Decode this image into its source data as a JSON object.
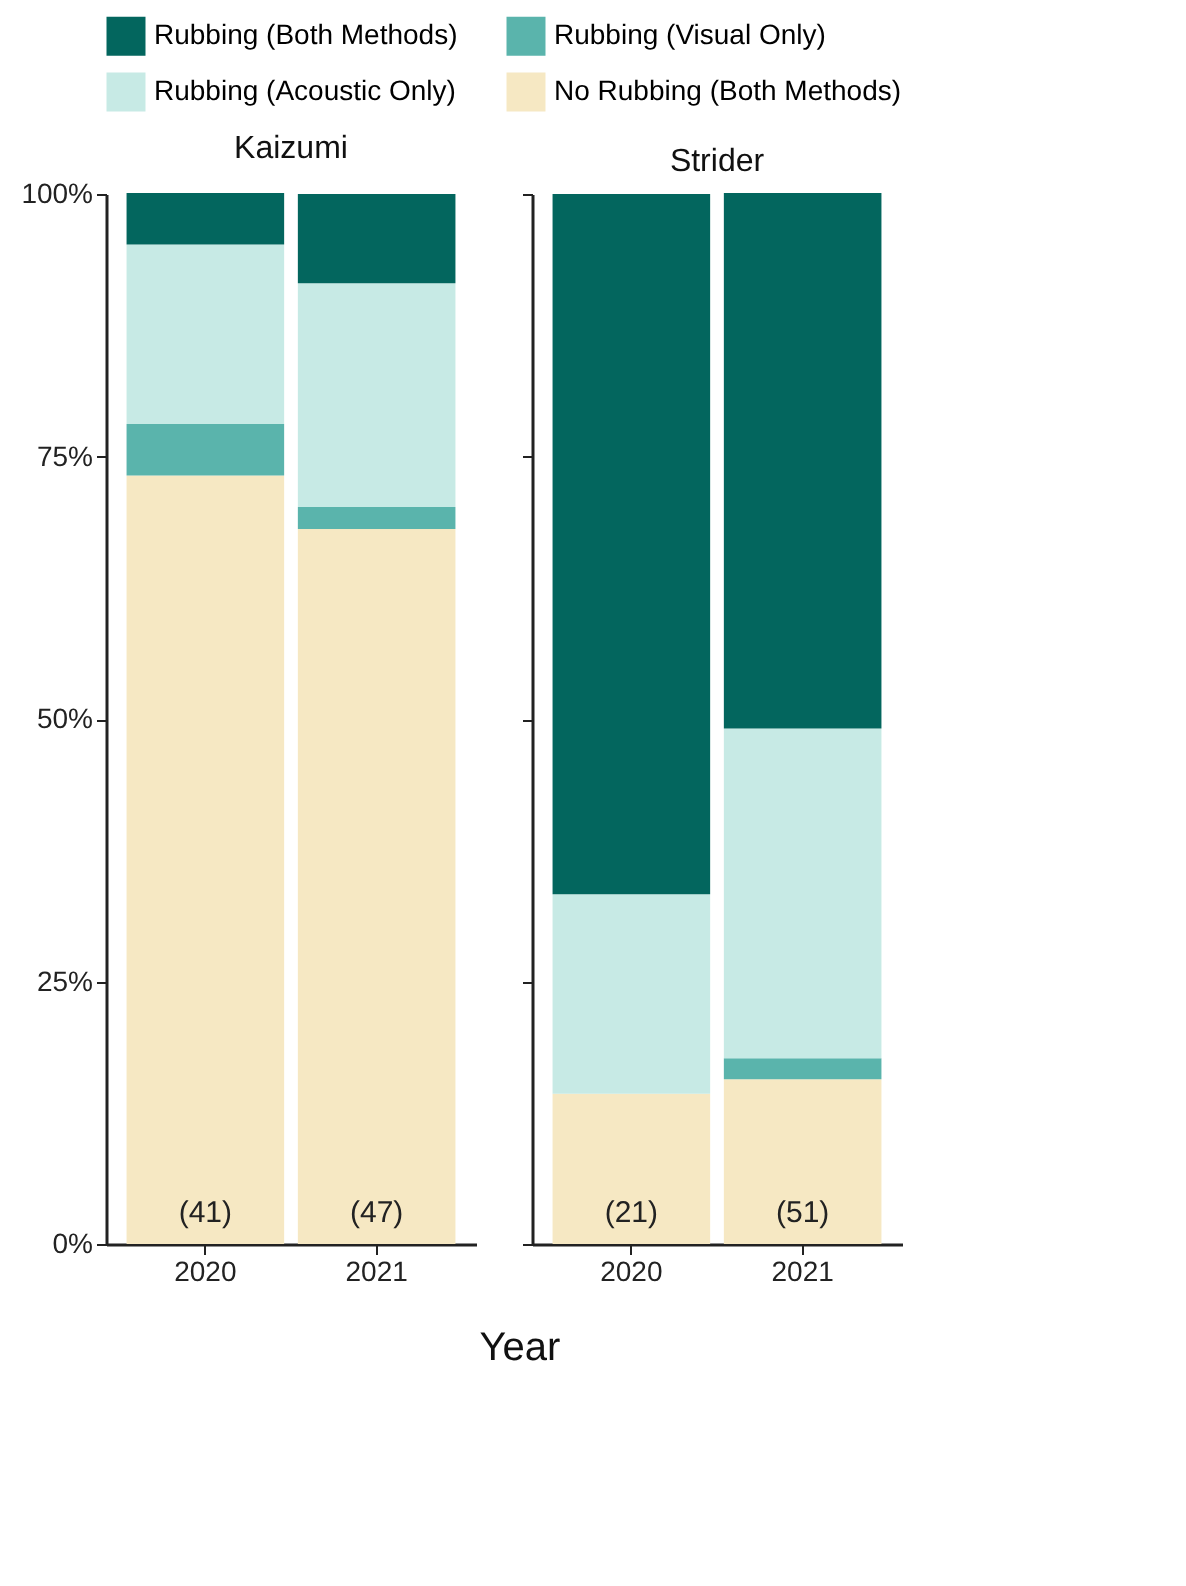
{
  "chart_data": [
    {
      "type": "bar",
      "title": "Kaizumi",
      "stacked": true,
      "categories": [
        "2020",
        "2021"
      ],
      "ylim": [
        0,
        100
      ],
      "yticks": [
        {
          "value": 0,
          "label": "0%"
        },
        {
          "value": 25,
          "label": "25%"
        },
        {
          "value": 50,
          "label": "50%"
        },
        {
          "value": 75,
          "label": "75%"
        },
        {
          "value": 100,
          "label": "100%"
        }
      ],
      "legend": "top",
      "xlabel": "Year",
      "series": [
        {
          "name": "No Rubbing (Both Methods)",
          "color": "#f6e8c3",
          "values": [
            73.2,
            68.1
          ]
        },
        {
          "name": "Rubbing (Visual Only)",
          "color": "#5ab4ac",
          "values": [
            4.9,
            2.1
          ]
        },
        {
          "name": "Rubbing (Acoustic Only)",
          "color": "#c7eae5",
          "values": [
            17.1,
            21.3
          ]
        },
        {
          "name": "Rubbing (Both Methods)",
          "color": "#03665e",
          "values": [
            4.9,
            8.5
          ]
        }
      ],
      "annotations": [
        "(41)",
        "(47)"
      ]
    },
    {
      "type": "bar",
      "title": "Strider",
      "stacked": true,
      "categories": [
        "2020",
        "2021"
      ],
      "ylim": [
        0,
        100
      ],
      "yticks": [
        {
          "value": 0,
          "label": null
        },
        {
          "value": 25,
          "label": null
        },
        {
          "value": 50,
          "label": null
        },
        {
          "value": 75,
          "label": null
        },
        {
          "value": 100,
          "label": null
        }
      ],
      "tick_labels": "x",
      "legend": "top",
      "series": [
        {
          "name": "No Rubbing (Both Methods)",
          "color": "#f6e8c3",
          "values": [
            14.3,
            15.7
          ]
        },
        {
          "name": "Rubbing (Visual Only)",
          "color": "#5ab4ac",
          "values": [
            0,
            2.0
          ]
        },
        {
          "name": "Rubbing (Acoustic Only)",
          "color": "#c7eae5",
          "values": [
            19.0,
            31.4
          ]
        },
        {
          "name": "Rubbing (Both Methods)",
          "color": "#03665e",
          "values": [
            66.7,
            51.0
          ]
        }
      ],
      "annotations": [
        "(21)",
        "(51)"
      ]
    }
  ]
}
